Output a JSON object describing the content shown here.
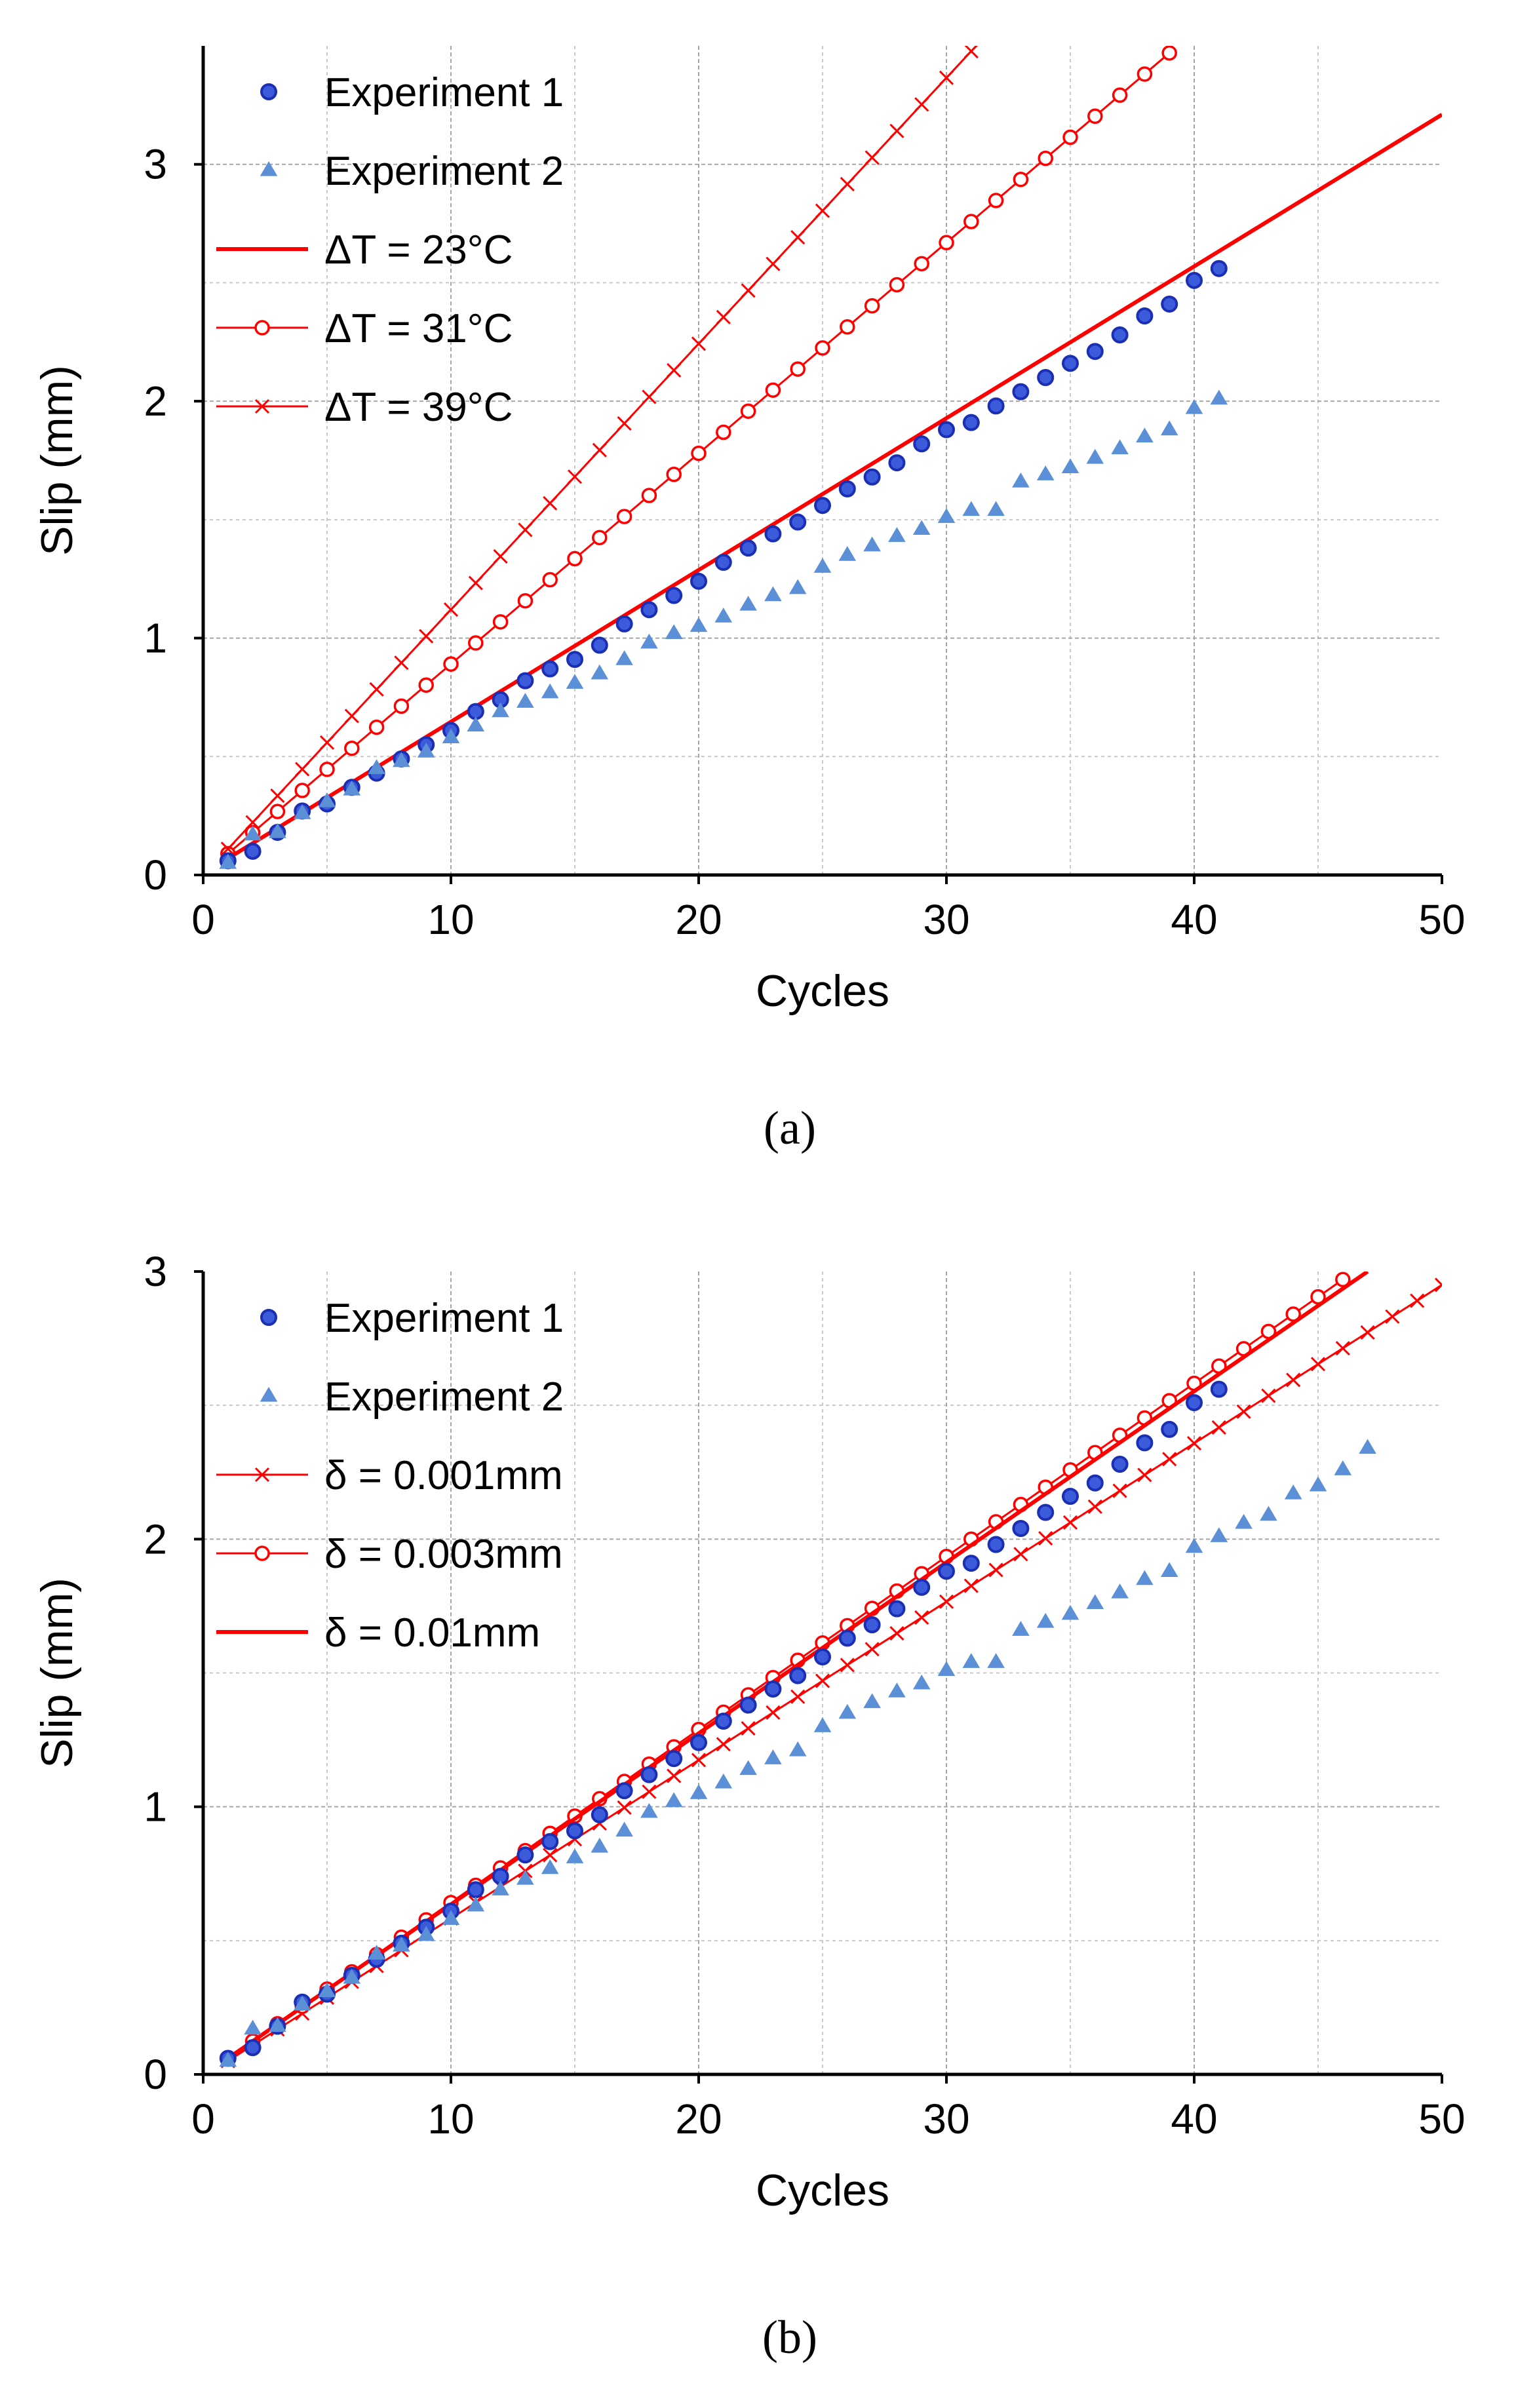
{
  "colors": {
    "red": "#ff0000",
    "blue_fill": "#3b5bdb",
    "blue_stroke": "#1a2fb4",
    "tri_fill": "#5b8fd6",
    "grid_major": "#a6a6a6",
    "grid_minor": "#c8c8c8"
  },
  "chart_data": [
    {
      "type": "scatter",
      "panel": "a",
      "caption": "(a)",
      "xlabel": "Cycles",
      "ylabel": "Slip (mm)",
      "xlim": [
        0,
        50
      ],
      "ylim": [
        0,
        3.5
      ],
      "xticks": [
        0,
        10,
        20,
        30,
        40,
        50
      ],
      "yticks": [
        0,
        1,
        2,
        3
      ],
      "grid": true,
      "legend_position": "top-left",
      "series": [
        {
          "name": "Experiment 1",
          "marker": "circle",
          "x": [
            1,
            2,
            3,
            4,
            5,
            6,
            7,
            8,
            9,
            10,
            11,
            12,
            13,
            14,
            15,
            16,
            17,
            18,
            19,
            20,
            21,
            22,
            23,
            24,
            25,
            26,
            27,
            28,
            29,
            30,
            31,
            32,
            33,
            34,
            35,
            36,
            37,
            38,
            39,
            40,
            41
          ],
          "y": [
            0.06,
            0.1,
            0.18,
            0.27,
            0.3,
            0.37,
            0.43,
            0.49,
            0.55,
            0.61,
            0.69,
            0.74,
            0.82,
            0.87,
            0.91,
            0.97,
            1.06,
            1.12,
            1.18,
            1.24,
            1.32,
            1.38,
            1.44,
            1.49,
            1.56,
            1.63,
            1.68,
            1.74,
            1.82,
            1.88,
            1.91,
            1.98,
            2.04,
            2.1,
            2.16,
            2.21,
            2.28,
            2.36,
            2.41,
            2.51,
            2.56
          ]
        },
        {
          "name": "Experiment 2",
          "marker": "triangle",
          "x": [
            1,
            2,
            3,
            4,
            5,
            6,
            7,
            8,
            9,
            10,
            11,
            12,
            13,
            14,
            15,
            16,
            17,
            18,
            19,
            20,
            21,
            22,
            23,
            24,
            25,
            26,
            27,
            28,
            29,
            30,
            31,
            32,
            33,
            34,
            35,
            36,
            37,
            38,
            39,
            40,
            41
          ],
          "y": [
            0.05,
            0.17,
            0.18,
            0.26,
            0.31,
            0.36,
            0.45,
            0.48,
            0.52,
            0.58,
            0.63,
            0.69,
            0.73,
            0.77,
            0.81,
            0.85,
            0.91,
            0.98,
            1.02,
            1.05,
            1.09,
            1.14,
            1.18,
            1.21,
            1.3,
            1.35,
            1.39,
            1.43,
            1.46,
            1.51,
            1.54,
            1.54,
            1.66,
            1.69,
            1.72,
            1.76,
            1.8,
            1.85,
            1.88,
            1.97,
            2.01
          ]
        },
        {
          "name": "ΔT = 23°C",
          "marker": "line",
          "x": [
            1,
            50
          ],
          "y": [
            0.07,
            3.21
          ]
        },
        {
          "name": "ΔT = 31°C",
          "marker": "line-circle",
          "x": [
            1,
            39
          ],
          "y": [
            0.09,
            3.47
          ]
        },
        {
          "name": "ΔT = 39°C",
          "marker": "line-x",
          "x": [
            1,
            31.2
          ],
          "y": [
            0.11,
            3.5
          ]
        }
      ]
    },
    {
      "type": "scatter",
      "panel": "b",
      "caption": "(b)",
      "xlabel": "Cycles",
      "ylabel": "Slip (mm)",
      "xlim": [
        0,
        50
      ],
      "ylim": [
        0,
        3
      ],
      "xticks": [
        0,
        10,
        20,
        30,
        40,
        50
      ],
      "yticks": [
        0,
        1,
        2,
        3
      ],
      "grid": true,
      "legend_position": "top-left",
      "series": [
        {
          "name": "Experiment 1",
          "marker": "circle",
          "x": [
            1,
            2,
            3,
            4,
            5,
            6,
            7,
            8,
            9,
            10,
            11,
            12,
            13,
            14,
            15,
            16,
            17,
            18,
            19,
            20,
            21,
            22,
            23,
            24,
            25,
            26,
            27,
            28,
            29,
            30,
            31,
            32,
            33,
            34,
            35,
            36,
            37,
            38,
            39,
            40,
            41
          ],
          "y": [
            0.06,
            0.1,
            0.18,
            0.27,
            0.3,
            0.37,
            0.43,
            0.49,
            0.55,
            0.61,
            0.69,
            0.74,
            0.82,
            0.87,
            0.91,
            0.97,
            1.06,
            1.12,
            1.18,
            1.24,
            1.32,
            1.38,
            1.44,
            1.49,
            1.56,
            1.63,
            1.68,
            1.74,
            1.82,
            1.88,
            1.91,
            1.98,
            2.04,
            2.1,
            2.16,
            2.21,
            2.28,
            2.36,
            2.41,
            2.51,
            2.56
          ]
        },
        {
          "name": "Experiment 2",
          "marker": "triangle",
          "x": [
            1,
            2,
            3,
            4,
            5,
            6,
            7,
            8,
            9,
            10,
            11,
            12,
            13,
            14,
            15,
            16,
            17,
            18,
            19,
            20,
            21,
            22,
            23,
            24,
            25,
            26,
            27,
            28,
            29,
            30,
            31,
            32,
            33,
            34,
            35,
            36,
            37,
            38,
            39,
            40,
            41,
            42,
            43,
            44,
            45,
            46,
            47
          ],
          "y": [
            0.05,
            0.17,
            0.18,
            0.26,
            0.31,
            0.36,
            0.45,
            0.48,
            0.52,
            0.58,
            0.63,
            0.69,
            0.73,
            0.77,
            0.81,
            0.85,
            0.91,
            0.98,
            1.02,
            1.05,
            1.09,
            1.14,
            1.18,
            1.21,
            1.3,
            1.35,
            1.39,
            1.43,
            1.46,
            1.51,
            1.54,
            1.54,
            1.66,
            1.69,
            1.72,
            1.76,
            1.8,
            1.85,
            1.88,
            1.97,
            2.01,
            2.06,
            2.09,
            2.17,
            2.2,
            2.26,
            2.34
          ]
        },
        {
          "name": "δ = 0.001mm",
          "marker": "line-x",
          "x": [
            1,
            50
          ],
          "y": [
            0.05,
            2.95
          ]
        },
        {
          "name": "δ = 0.003mm",
          "marker": "line-circle",
          "x": [
            1,
            46
          ],
          "y": [
            0.06,
            2.97
          ]
        },
        {
          "name": "δ = 0.01mm",
          "marker": "line",
          "x": [
            1,
            47
          ],
          "y": [
            0.06,
            3.0
          ]
        }
      ]
    }
  ]
}
